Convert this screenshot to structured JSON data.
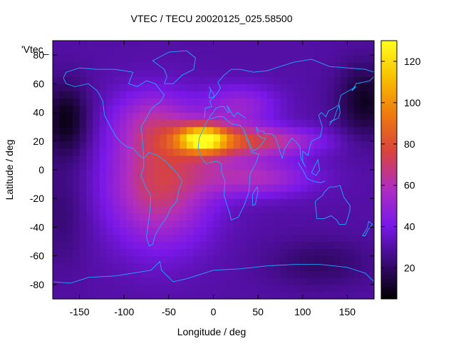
{
  "chart_data": {
    "type": "heatmap",
    "title": "VTEC / TECU 20020125_025.58500",
    "series_label": "'Vtec_",
    "xlabel": "Longitude / deg",
    "ylabel": "Latitude / deg",
    "xlim": [
      -180,
      180
    ],
    "ylim": [
      -90,
      90
    ],
    "xticks": [
      -150,
      -100,
      -50,
      0,
      50,
      100,
      150
    ],
    "yticks": [
      -80,
      -60,
      -40,
      -20,
      0,
      20,
      40,
      60,
      80
    ],
    "colorbar": {
      "range": [
        5,
        130
      ],
      "ticks": [
        20,
        40,
        60,
        80,
        100,
        120
      ],
      "palette": [
        "#000000",
        "#3a0a78",
        "#7a18e8",
        "#b02ec0",
        "#d8443c",
        "#ee7a10",
        "#f8c000",
        "#ffff20"
      ]
    },
    "features": {
      "description_values": {
        "background_level": 30,
        "equatorial_anomaly_peak": {
          "lon": -15,
          "lat": 22,
          "value": 128
        },
        "south_american_maximum": {
          "lon": -60,
          "lat": -5,
          "value": 75
        },
        "african_band_max": {
          "lon": 50,
          "lat": 20,
          "value": 72
        },
        "polar_minimum": {
          "lon": -165,
          "lat": 35,
          "value": 8
        }
      }
    },
    "colors": {
      "coastline": "#22a8ff",
      "axis": "#000000"
    }
  }
}
